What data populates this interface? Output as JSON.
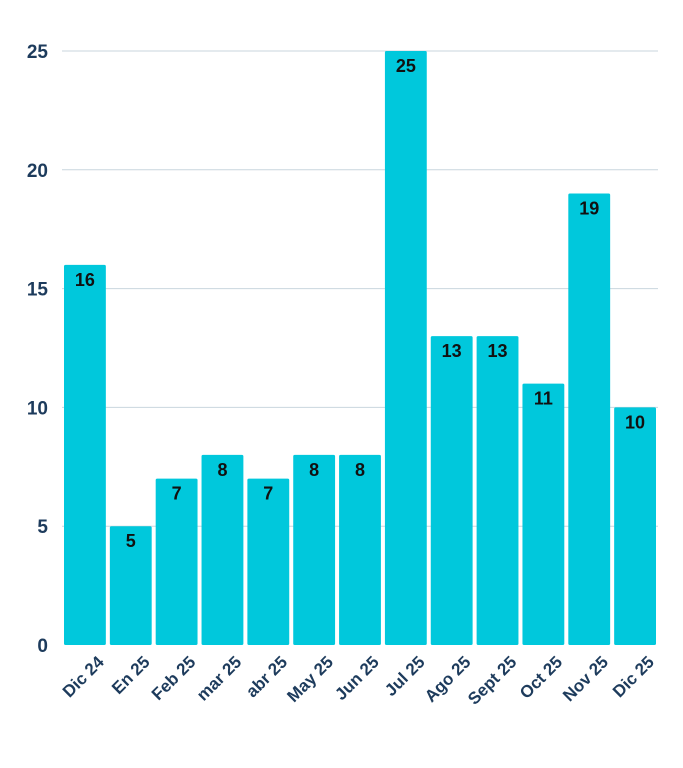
{
  "chart_data": {
    "type": "bar",
    "title": "",
    "xlabel": "",
    "ylabel": "",
    "categories": [
      "Dic 24",
      "En 25",
      "Feb 25",
      "mar 25",
      "abr 25",
      "May 25",
      "Jun 25",
      "Jul 25",
      "Ago 25",
      "Sept 25",
      "Oct 25",
      "Nov 25",
      "Dic 25"
    ],
    "values": [
      16,
      5,
      7,
      8,
      7,
      8,
      8,
      25,
      13,
      13,
      11,
      19,
      10
    ],
    "ylim": [
      0,
      25
    ],
    "yticks": [
      0,
      5,
      10,
      15,
      20,
      25
    ],
    "grid": true,
    "bar_color": "#00c8dc",
    "axis_text_color": "#1d3b5c",
    "label_color": "#111111"
  }
}
